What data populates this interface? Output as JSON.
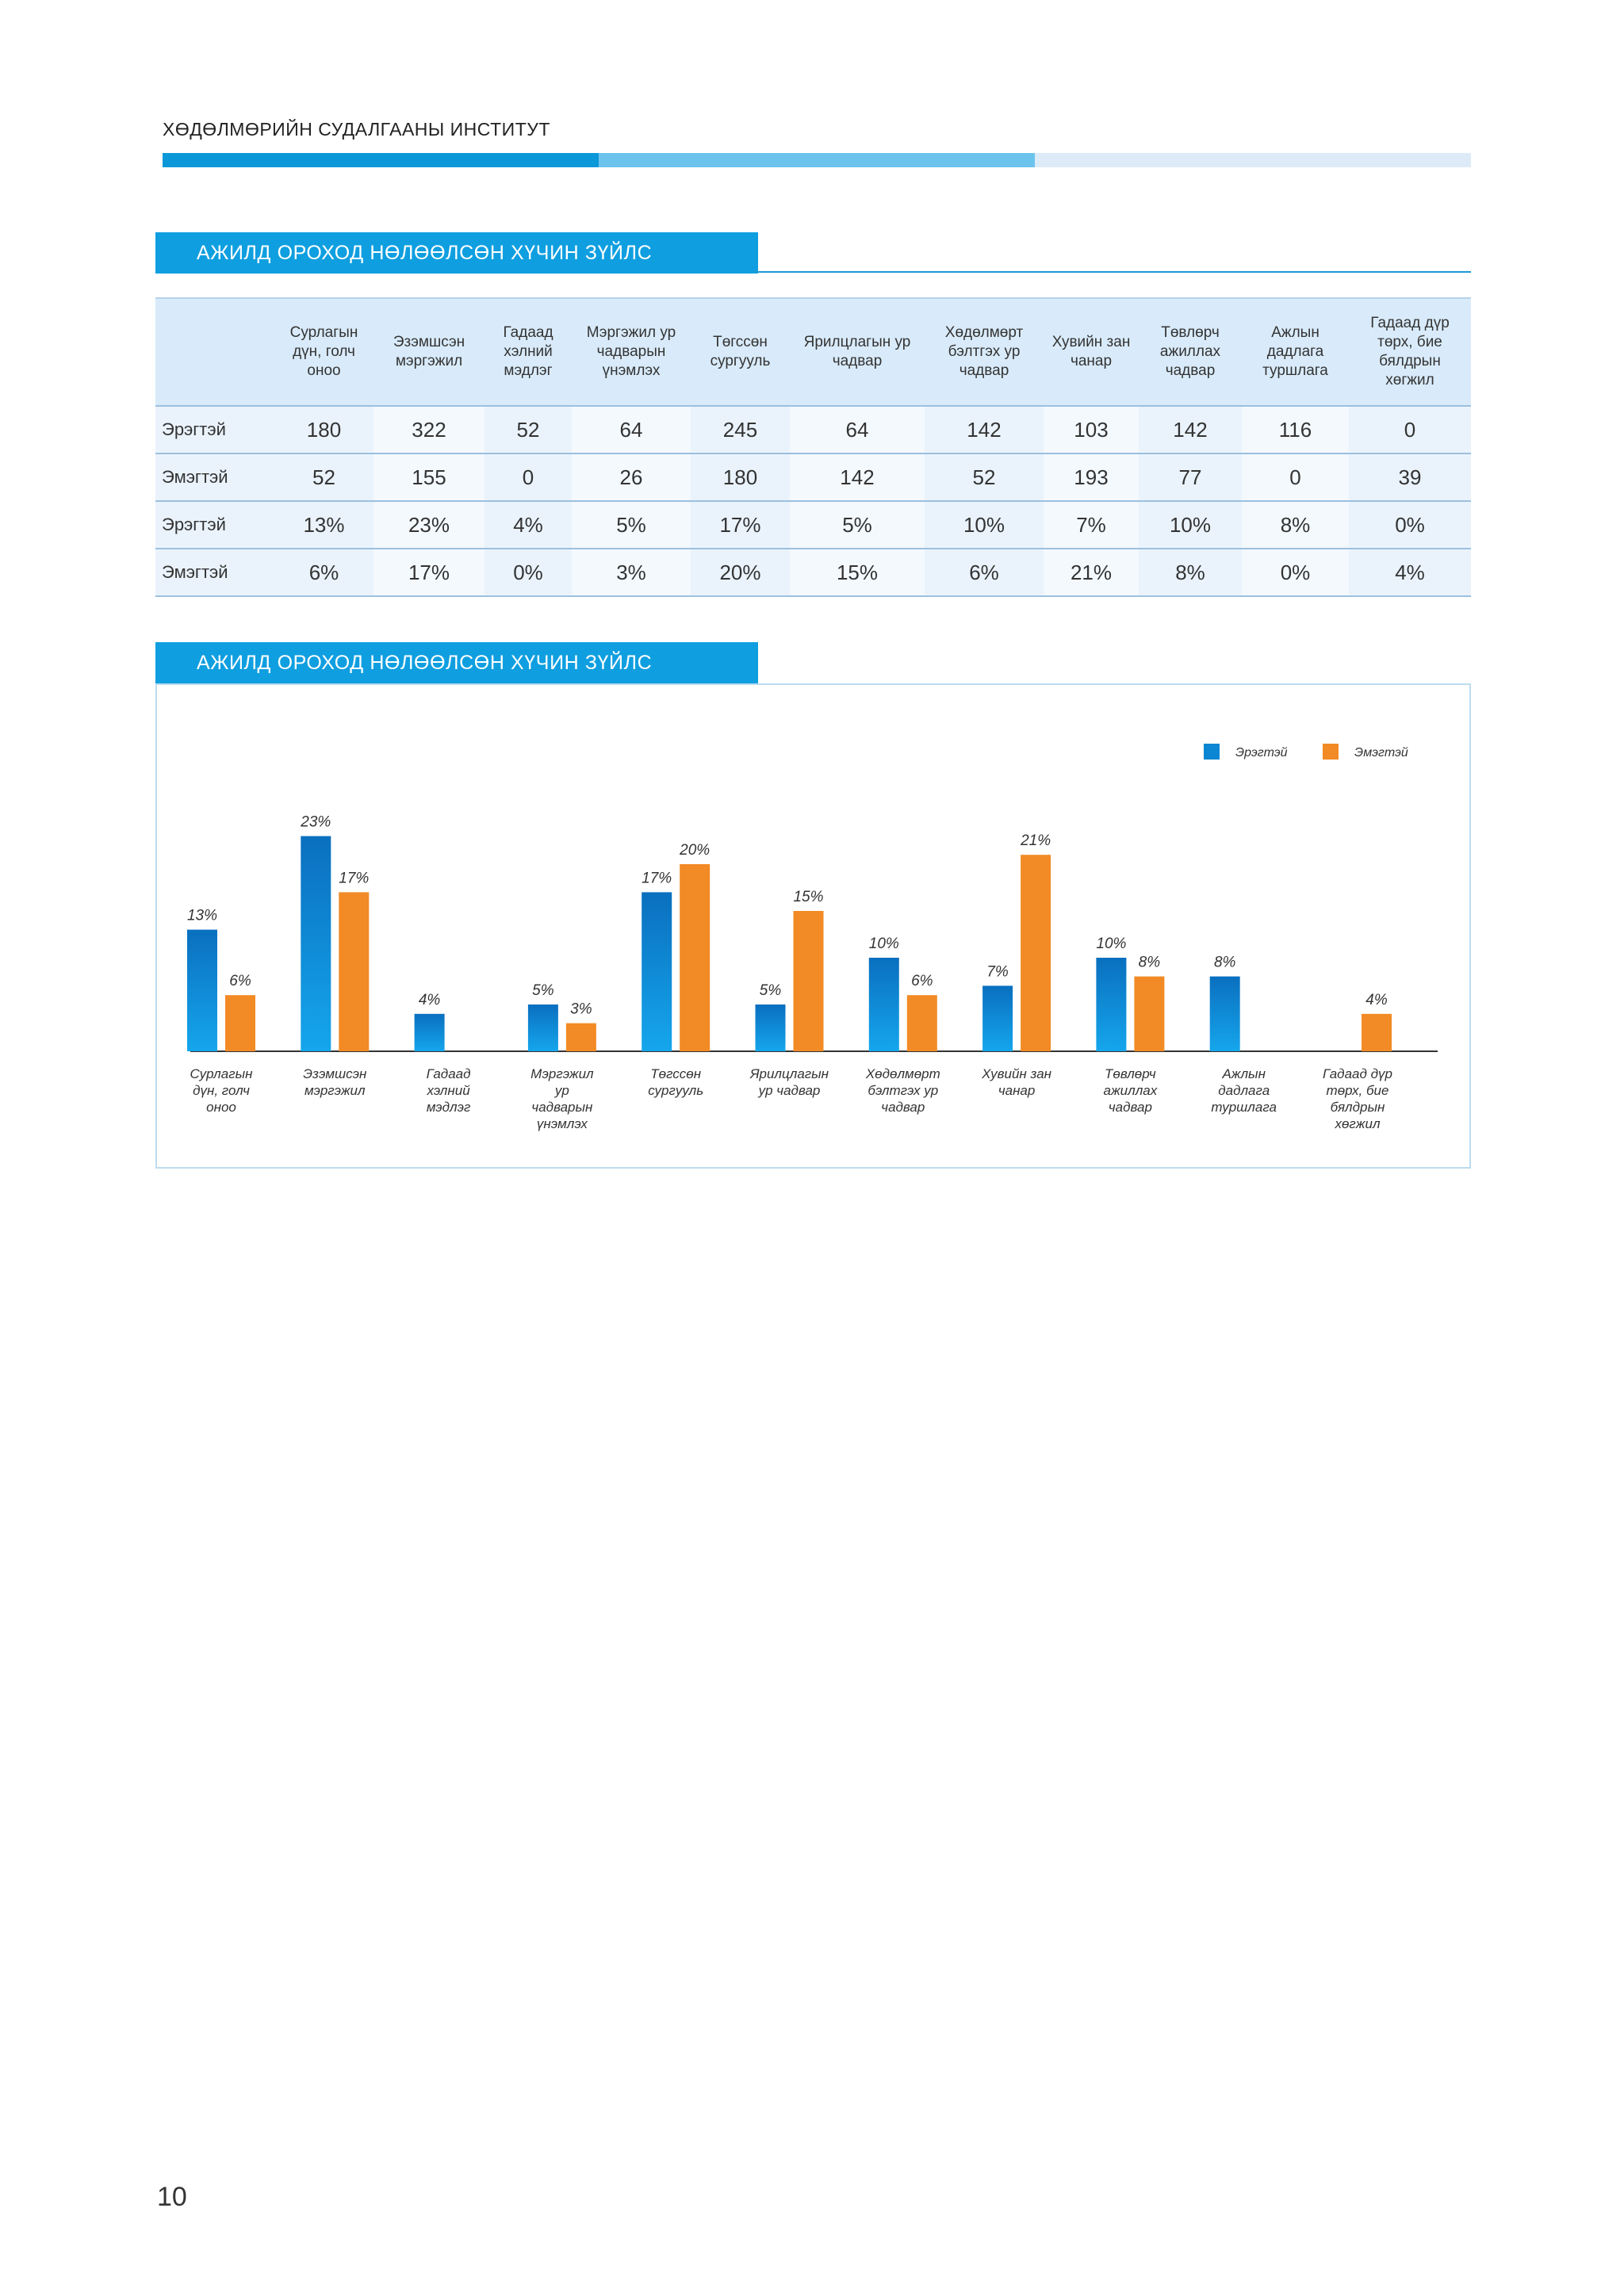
{
  "header": {
    "title": "ХӨДӨЛМӨРИЙН СУДАЛГААНЫ ИНСТИТУТ"
  },
  "table_section": {
    "title": "АЖИЛД ОРОХОД НӨЛӨӨЛСӨН ХҮЧИН ЗҮЙЛС"
  },
  "chart_section": {
    "title": "АЖИЛД ОРОХОД НӨЛӨӨЛСӨН ХҮЧИН ЗҮЙЛС"
  },
  "table": {
    "headers": [
      "Сурлагын дүн, голч оноо",
      "Эзэмшсэн мэргэжил",
      "Гадаад хэлний мэдлэг",
      "Мэргэжил ур чадварын үнэмлэх",
      "Төгссөн сургууль",
      "Ярилцлагын ур чадвар",
      "Хөдөлмөрт бэлтгэх ур чадвар",
      "Хувийн зан чанар",
      "Төвлөрч ажиллах чадвар",
      "Ажлын дадлага туршлага",
      "Гадаад дүр төрх, бие бялдрын хөгжил"
    ],
    "rows": [
      {
        "label": "Эрэгтэй",
        "cells": [
          "180",
          "322",
          "52",
          "64",
          "245",
          "64",
          "142",
          "103",
          "142",
          "116",
          "0"
        ]
      },
      {
        "label": "Эмэгтэй",
        "cells": [
          "52",
          "155",
          "0",
          "26",
          "180",
          "142",
          "52",
          "193",
          "77",
          "0",
          "39"
        ]
      },
      {
        "label": "Эрэгтэй",
        "cells": [
          "13%",
          "23%",
          "4%",
          "5%",
          "17%",
          "5%",
          "10%",
          "7%",
          "10%",
          "8%",
          "0%"
        ]
      },
      {
        "label": "Эмэгтэй",
        "cells": [
          "6%",
          "17%",
          "0%",
          "3%",
          "20%",
          "15%",
          "6%",
          "21%",
          "8%",
          "0%",
          "4%"
        ]
      }
    ]
  },
  "chart_data": {
    "type": "bar",
    "title": "АЖИЛД ОРОХОД НӨЛӨӨЛСӨН ХҮЧИН ЗҮЙЛС",
    "categories": [
      [
        "Сурлагын",
        "дүн, голч",
        "оноо"
      ],
      [
        "Эзэмшсэн",
        "мэргэжил"
      ],
      [
        "Гадаад",
        "хэлний",
        "мэдлэг"
      ],
      [
        "Мэргэжил",
        "ур",
        "чадварын",
        "үнэмлэх"
      ],
      [
        "Төгссөн",
        "сургууль"
      ],
      [
        "Ярилцлагын",
        "ур чадвар"
      ],
      [
        "Хөдөлмөрт",
        "бэлтгэх ур",
        "чадвар"
      ],
      [
        "Хувийн зан",
        "чанар"
      ],
      [
        "Төвлөрч",
        "ажиллах",
        "чадвар"
      ],
      [
        "Ажлын",
        "дадлага",
        "туршлага"
      ],
      [
        "Гадаад дүр",
        "төрх, бие",
        "бялдрын",
        "хөгжил"
      ]
    ],
    "series": [
      {
        "name": "Эрэгтэй",
        "color": "#0a86d2",
        "values": [
          13,
          23,
          4,
          5,
          17,
          5,
          10,
          7,
          10,
          8,
          0
        ],
        "labels": [
          "13%",
          "23%",
          "4%",
          "5%",
          "17%",
          "5%",
          "10%",
          "7%",
          "10%",
          "8%",
          ""
        ]
      },
      {
        "name": "Эмэгтэй",
        "color": "#f28a25",
        "values": [
          6,
          17,
          0,
          3,
          20,
          15,
          6,
          21,
          8,
          0,
          4
        ],
        "labels": [
          "6%",
          "17%",
          "",
          "3%",
          "20%",
          "15%",
          "6%",
          "21%",
          "8%",
          "",
          "4%"
        ]
      }
    ],
    "ylim": [
      0,
      23
    ],
    "legend": "top-right",
    "xlabel": "",
    "ylabel": ""
  },
  "footer": {
    "page_number": "10"
  }
}
